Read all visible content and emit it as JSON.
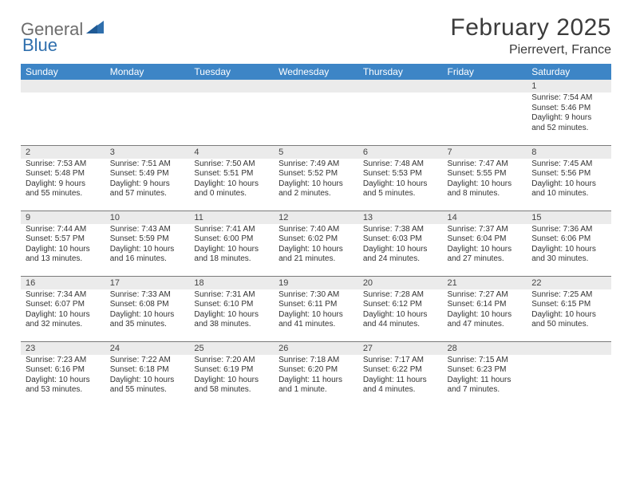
{
  "brand": {
    "general": "General",
    "blue": "Blue"
  },
  "title": "February 2025",
  "location": "Pierrevert, France",
  "colors": {
    "header_bg": "#3d85c6",
    "header_fg": "#ffffff",
    "grey_bar": "#ebebeb",
    "rule": "#7a7a7a",
    "logo_grey": "#6d6d6d",
    "logo_blue": "#2f6fad"
  },
  "weekdays": [
    "Sunday",
    "Monday",
    "Tuesday",
    "Wednesday",
    "Thursday",
    "Friday",
    "Saturday"
  ],
  "weeks": [
    [
      {
        "n": "",
        "sr": "",
        "ss": "",
        "dl": ""
      },
      {
        "n": "",
        "sr": "",
        "ss": "",
        "dl": ""
      },
      {
        "n": "",
        "sr": "",
        "ss": "",
        "dl": ""
      },
      {
        "n": "",
        "sr": "",
        "ss": "",
        "dl": ""
      },
      {
        "n": "",
        "sr": "",
        "ss": "",
        "dl": ""
      },
      {
        "n": "",
        "sr": "",
        "ss": "",
        "dl": ""
      },
      {
        "n": "1",
        "sr": "Sunrise: 7:54 AM",
        "ss": "Sunset: 5:46 PM",
        "dl": "Daylight: 9 hours and 52 minutes."
      }
    ],
    [
      {
        "n": "2",
        "sr": "Sunrise: 7:53 AM",
        "ss": "Sunset: 5:48 PM",
        "dl": "Daylight: 9 hours and 55 minutes."
      },
      {
        "n": "3",
        "sr": "Sunrise: 7:51 AM",
        "ss": "Sunset: 5:49 PM",
        "dl": "Daylight: 9 hours and 57 minutes."
      },
      {
        "n": "4",
        "sr": "Sunrise: 7:50 AM",
        "ss": "Sunset: 5:51 PM",
        "dl": "Daylight: 10 hours and 0 minutes."
      },
      {
        "n": "5",
        "sr": "Sunrise: 7:49 AM",
        "ss": "Sunset: 5:52 PM",
        "dl": "Daylight: 10 hours and 2 minutes."
      },
      {
        "n": "6",
        "sr": "Sunrise: 7:48 AM",
        "ss": "Sunset: 5:53 PM",
        "dl": "Daylight: 10 hours and 5 minutes."
      },
      {
        "n": "7",
        "sr": "Sunrise: 7:47 AM",
        "ss": "Sunset: 5:55 PM",
        "dl": "Daylight: 10 hours and 8 minutes."
      },
      {
        "n": "8",
        "sr": "Sunrise: 7:45 AM",
        "ss": "Sunset: 5:56 PM",
        "dl": "Daylight: 10 hours and 10 minutes."
      }
    ],
    [
      {
        "n": "9",
        "sr": "Sunrise: 7:44 AM",
        "ss": "Sunset: 5:57 PM",
        "dl": "Daylight: 10 hours and 13 minutes."
      },
      {
        "n": "10",
        "sr": "Sunrise: 7:43 AM",
        "ss": "Sunset: 5:59 PM",
        "dl": "Daylight: 10 hours and 16 minutes."
      },
      {
        "n": "11",
        "sr": "Sunrise: 7:41 AM",
        "ss": "Sunset: 6:00 PM",
        "dl": "Daylight: 10 hours and 18 minutes."
      },
      {
        "n": "12",
        "sr": "Sunrise: 7:40 AM",
        "ss": "Sunset: 6:02 PM",
        "dl": "Daylight: 10 hours and 21 minutes."
      },
      {
        "n": "13",
        "sr": "Sunrise: 7:38 AM",
        "ss": "Sunset: 6:03 PM",
        "dl": "Daylight: 10 hours and 24 minutes."
      },
      {
        "n": "14",
        "sr": "Sunrise: 7:37 AM",
        "ss": "Sunset: 6:04 PM",
        "dl": "Daylight: 10 hours and 27 minutes."
      },
      {
        "n": "15",
        "sr": "Sunrise: 7:36 AM",
        "ss": "Sunset: 6:06 PM",
        "dl": "Daylight: 10 hours and 30 minutes."
      }
    ],
    [
      {
        "n": "16",
        "sr": "Sunrise: 7:34 AM",
        "ss": "Sunset: 6:07 PM",
        "dl": "Daylight: 10 hours and 32 minutes."
      },
      {
        "n": "17",
        "sr": "Sunrise: 7:33 AM",
        "ss": "Sunset: 6:08 PM",
        "dl": "Daylight: 10 hours and 35 minutes."
      },
      {
        "n": "18",
        "sr": "Sunrise: 7:31 AM",
        "ss": "Sunset: 6:10 PM",
        "dl": "Daylight: 10 hours and 38 minutes."
      },
      {
        "n": "19",
        "sr": "Sunrise: 7:30 AM",
        "ss": "Sunset: 6:11 PM",
        "dl": "Daylight: 10 hours and 41 minutes."
      },
      {
        "n": "20",
        "sr": "Sunrise: 7:28 AM",
        "ss": "Sunset: 6:12 PM",
        "dl": "Daylight: 10 hours and 44 minutes."
      },
      {
        "n": "21",
        "sr": "Sunrise: 7:27 AM",
        "ss": "Sunset: 6:14 PM",
        "dl": "Daylight: 10 hours and 47 minutes."
      },
      {
        "n": "22",
        "sr": "Sunrise: 7:25 AM",
        "ss": "Sunset: 6:15 PM",
        "dl": "Daylight: 10 hours and 50 minutes."
      }
    ],
    [
      {
        "n": "23",
        "sr": "Sunrise: 7:23 AM",
        "ss": "Sunset: 6:16 PM",
        "dl": "Daylight: 10 hours and 53 minutes."
      },
      {
        "n": "24",
        "sr": "Sunrise: 7:22 AM",
        "ss": "Sunset: 6:18 PM",
        "dl": "Daylight: 10 hours and 55 minutes."
      },
      {
        "n": "25",
        "sr": "Sunrise: 7:20 AM",
        "ss": "Sunset: 6:19 PM",
        "dl": "Daylight: 10 hours and 58 minutes."
      },
      {
        "n": "26",
        "sr": "Sunrise: 7:18 AM",
        "ss": "Sunset: 6:20 PM",
        "dl": "Daylight: 11 hours and 1 minute."
      },
      {
        "n": "27",
        "sr": "Sunrise: 7:17 AM",
        "ss": "Sunset: 6:22 PM",
        "dl": "Daylight: 11 hours and 4 minutes."
      },
      {
        "n": "28",
        "sr": "Sunrise: 7:15 AM",
        "ss": "Sunset: 6:23 PM",
        "dl": "Daylight: 11 hours and 7 minutes."
      },
      {
        "n": "",
        "sr": "",
        "ss": "",
        "dl": ""
      }
    ]
  ]
}
